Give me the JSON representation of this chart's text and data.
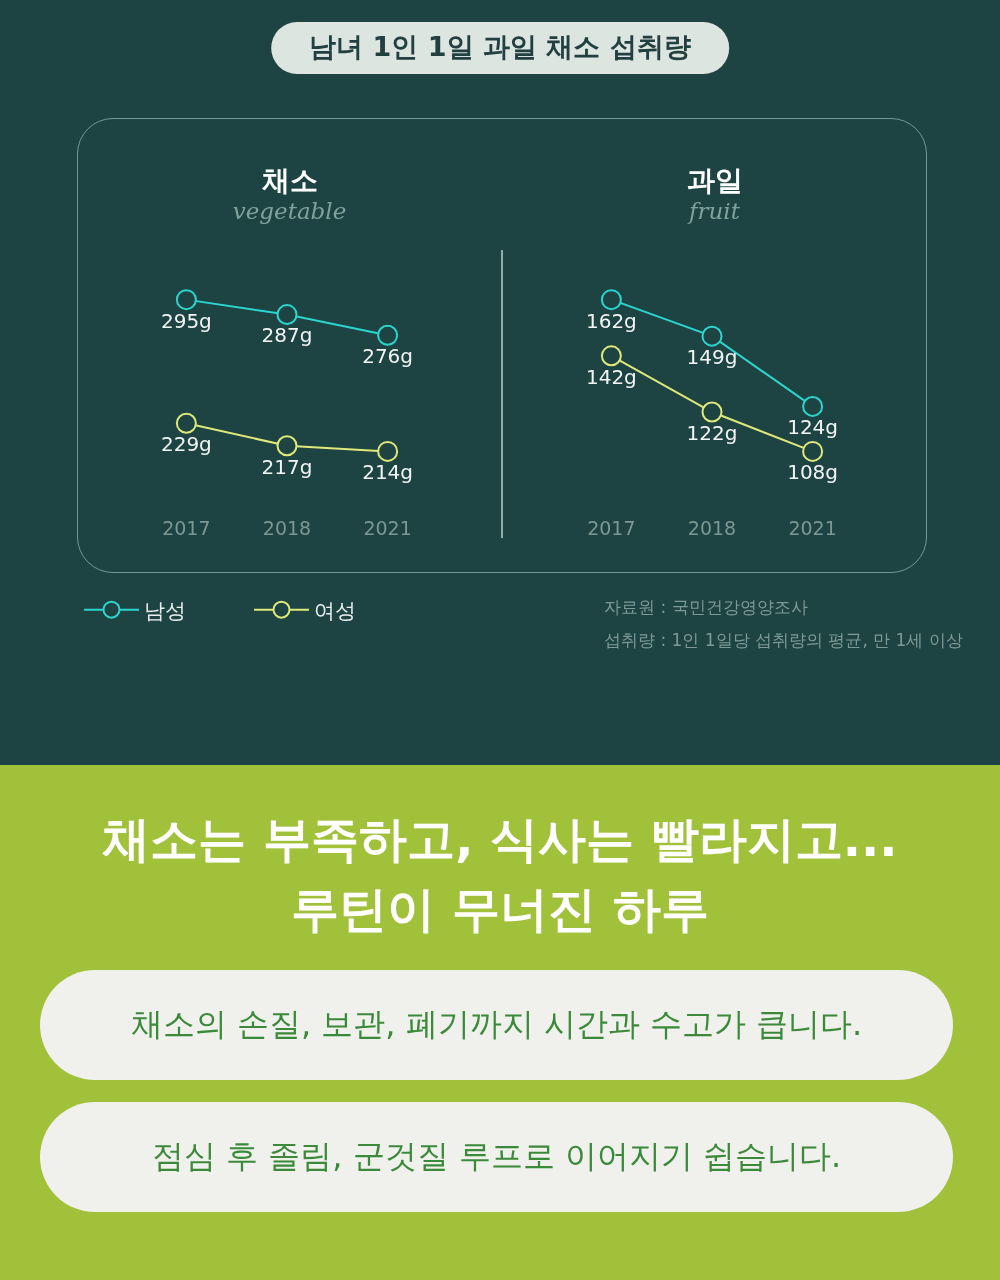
{
  "chart_data": [
    {
      "type": "other",
      "title": "남녀 1인 1일 과일 채소 섭취량"
    },
    {
      "type": "line",
      "title": "채소",
      "subtitle": "vegetable",
      "categories": [
        "2017",
        "2018",
        "2021"
      ],
      "series": [
        {
          "name": "남성",
          "color": "#2cd5cf",
          "values": [
            295,
            287,
            276
          ],
          "value_labels": [
            "295g",
            "287g",
            "276g"
          ]
        },
        {
          "name": "여성",
          "color": "#dfe97a",
          "values": [
            229,
            217,
            214
          ],
          "value_labels": [
            "229g",
            "217g",
            "214g"
          ]
        }
      ],
      "tick_labels": "x",
      "marker": "circle",
      "legend": "bottom left"
    },
    {
      "type": "line",
      "title": "과일",
      "subtitle": "fruit",
      "categories": [
        "2017",
        "2018",
        "2021"
      ],
      "series": [
        {
          "color": "#2cd5cf",
          "values": [
            162,
            149,
            124
          ],
          "value_labels": [
            "162g",
            "149g",
            "124g"
          ]
        },
        {
          "color": "#dfe97a",
          "values": [
            142,
            122,
            108
          ],
          "value_labels": [
            "142g",
            "122g",
            "108g"
          ]
        }
      ],
      "tick_labels": "x",
      "marker": "circle",
      "annotations": [
        "자료원 : 국민건강영양조사",
        "섭취량 : 1인 1일당 섭취량의 평균, 만 1세 이상"
      ]
    },
    {
      "type": "other",
      "title": "채소는 부족하고, 식사는 빨라지고...\n루틴이 무너진 하루",
      "annotations": [
        "채소의 손질, 보관, 폐기까지 시간과 수고가 큽니다.",
        "점심 후 졸림, 군것질 루프로 이어지기 쉽습니다."
      ]
    }
  ]
}
